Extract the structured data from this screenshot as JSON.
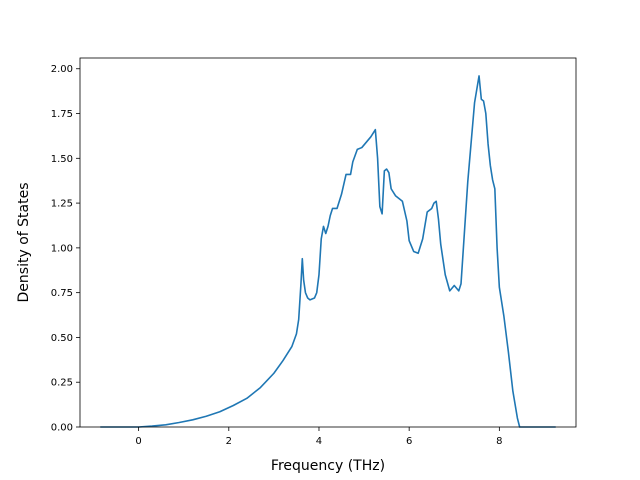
{
  "chart_data": {
    "type": "line",
    "title": "",
    "xlabel": "Frequency (THz)",
    "ylabel": "Density of States",
    "xlim": [
      -1.3,
      9.7
    ],
    "ylim": [
      0,
      2.06
    ],
    "grid": false,
    "x_ticks": [
      0,
      2,
      4,
      6,
      8
    ],
    "y_ticks": [
      0.0,
      0.25,
      0.5,
      0.75,
      1.0,
      1.25,
      1.5,
      1.75,
      2.0
    ],
    "x_tick_labels": [
      "0",
      "2",
      "4",
      "6",
      "8"
    ],
    "y_tick_labels": [
      "0.00",
      "0.25",
      "0.50",
      "0.75",
      "1.00",
      "1.25",
      "1.50",
      "1.75",
      "2.00"
    ],
    "series": [
      {
        "color": "#1f77b4",
        "x": [
          -0.85,
          -0.5,
          0.0,
          0.3,
          0.6,
          0.9,
          1.2,
          1.5,
          1.8,
          2.1,
          2.4,
          2.7,
          3.0,
          3.2,
          3.4,
          3.5,
          3.55,
          3.6,
          3.63,
          3.66,
          3.7,
          3.75,
          3.8,
          3.9,
          3.95,
          4.0,
          4.05,
          4.1,
          4.15,
          4.2,
          4.25,
          4.3,
          4.4,
          4.5,
          4.6,
          4.7,
          4.75,
          4.85,
          4.95,
          5.05,
          5.15,
          5.25,
          5.3,
          5.35,
          5.4,
          5.45,
          5.5,
          5.55,
          5.6,
          5.7,
          5.85,
          5.95,
          6.0,
          6.1,
          6.2,
          6.3,
          6.4,
          6.5,
          6.55,
          6.6,
          6.65,
          6.7,
          6.8,
          6.9,
          7.0,
          7.1,
          7.15,
          7.3,
          7.45,
          7.55,
          7.6,
          7.65,
          7.7,
          7.75,
          7.8,
          7.85,
          7.9,
          7.95,
          8.0,
          8.1,
          8.2,
          8.3,
          8.4,
          8.45,
          8.5,
          9.25
        ],
        "y": [
          0.0,
          0.0,
          0.0,
          0.005,
          0.012,
          0.025,
          0.04,
          0.06,
          0.085,
          0.12,
          0.16,
          0.22,
          0.3,
          0.37,
          0.45,
          0.52,
          0.6,
          0.8,
          0.94,
          0.82,
          0.75,
          0.72,
          0.71,
          0.72,
          0.75,
          0.85,
          1.05,
          1.12,
          1.08,
          1.12,
          1.18,
          1.22,
          1.22,
          1.3,
          1.41,
          1.41,
          1.48,
          1.55,
          1.56,
          1.59,
          1.62,
          1.66,
          1.5,
          1.23,
          1.19,
          1.43,
          1.44,
          1.42,
          1.33,
          1.29,
          1.26,
          1.15,
          1.04,
          0.98,
          0.97,
          1.05,
          1.2,
          1.22,
          1.25,
          1.26,
          1.16,
          1.02,
          0.85,
          0.76,
          0.79,
          0.76,
          0.8,
          1.37,
          1.81,
          1.96,
          1.83,
          1.82,
          1.75,
          1.58,
          1.46,
          1.38,
          1.33,
          1.0,
          0.78,
          0.62,
          0.42,
          0.2,
          0.05,
          0.0,
          0.0,
          0.0
        ]
      }
    ]
  }
}
